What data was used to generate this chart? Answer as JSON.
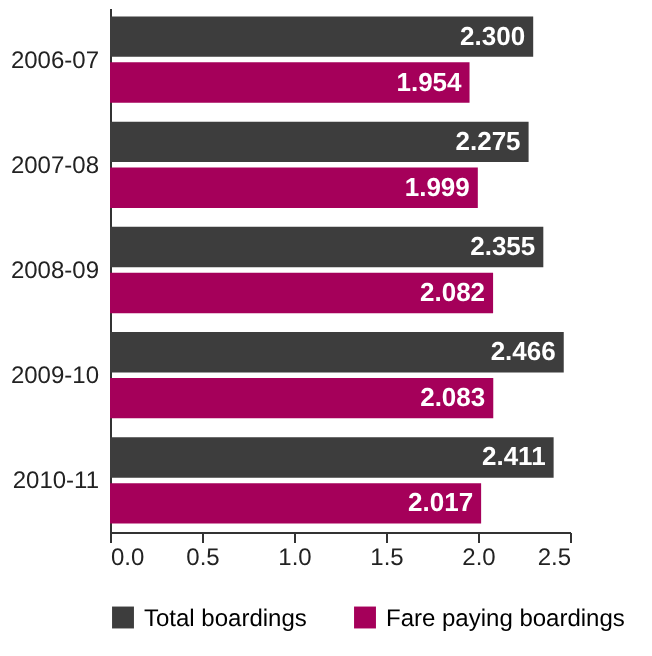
{
  "chart_data": {
    "type": "bar",
    "orientation": "horizontal",
    "categories": [
      "2006-07",
      "2007-08",
      "2008-09",
      "2009-10",
      "2010-11"
    ],
    "series": [
      {
        "name": "Total boardings",
        "color": "#3d3d3d",
        "values": [
          2.3,
          2.275,
          2.355,
          2.466,
          2.411
        ],
        "value_labels": [
          "2.300",
          "2.275",
          "2.355",
          "2.466",
          "2.411"
        ]
      },
      {
        "name": "Fare paying boardings",
        "color": "#a5005a",
        "values": [
          1.954,
          1.999,
          2.082,
          2.083,
          2.017
        ],
        "value_labels": [
          "1.954",
          "1.999",
          "2.082",
          "2.083",
          "2.017"
        ]
      }
    ],
    "xlim": [
      0,
      2.5
    ],
    "xticks": [
      {
        "value": 0,
        "label": "0.0"
      },
      {
        "value": 0.5,
        "label": "0.5"
      },
      {
        "value": 1,
        "label": "1.0"
      },
      {
        "value": 1.5,
        "label": "1.5"
      },
      {
        "value": 2,
        "label": "2.0"
      },
      {
        "value": 2.5,
        "label": "2.5"
      }
    ],
    "grid": false,
    "legend": "bottom"
  }
}
